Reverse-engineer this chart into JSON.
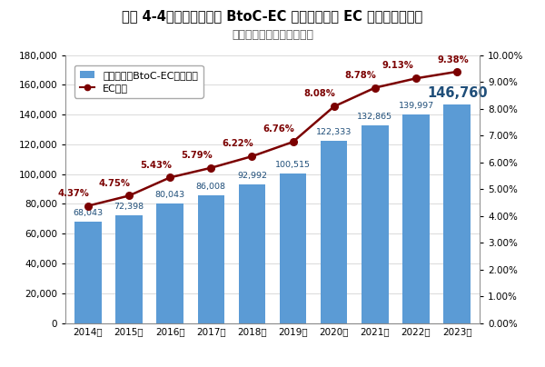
{
  "title": "図表 4-4：物販系分野の BtoC-EC 市場規模及び EC 化率の経年推移",
  "subtitle": "（市場規模の単位：億円）",
  "years": [
    "2014年",
    "2015年",
    "2016年",
    "2017年",
    "2018年",
    "2019年",
    "2020年",
    "2021年",
    "2022年",
    "2023年"
  ],
  "bar_values": [
    68043,
    72398,
    80043,
    86008,
    92992,
    100515,
    122333,
    132865,
    139997,
    146760
  ],
  "ec_rates": [
    4.37,
    4.75,
    5.43,
    5.79,
    6.22,
    6.76,
    8.08,
    8.78,
    9.13,
    9.38
  ],
  "bar_color": "#5B9BD5",
  "line_color": "#7B0000",
  "marker_color": "#7B0000",
  "bar_label_color": "#1F4E79",
  "ec_label_color": "#7B0000",
  "bar_legend_label": "物販系分野BtoC-EC市場規模",
  "line_legend_label": "EC化率",
  "ylim_left": [
    0,
    180000
  ],
  "ylim_right": [
    0.0,
    10.0
  ],
  "yticks_left": [
    0,
    20000,
    40000,
    60000,
    80000,
    100000,
    120000,
    140000,
    160000,
    180000
  ],
  "yticks_right": [
    0.0,
    1.0,
    2.0,
    3.0,
    4.0,
    5.0,
    6.0,
    7.0,
    8.0,
    9.0,
    10.0
  ],
  "background_color": "#FFFFFF",
  "title_fontsize": 10.5,
  "subtitle_fontsize": 9.0,
  "axis_fontsize": 7.5,
  "bar_label_fontsize": 6.8,
  "bar_label_last_fontsize": 10.5,
  "ec_label_fontsize": 7.2
}
